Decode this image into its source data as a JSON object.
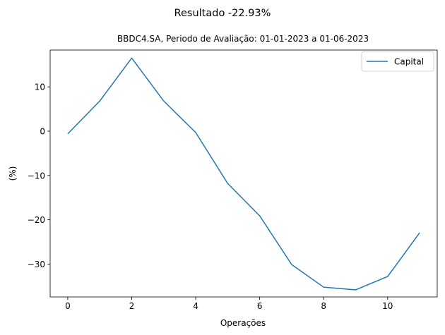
{
  "chart_data": {
    "type": "line",
    "suptitle": "Resultado -22.93%",
    "title": "BBDC4.SA, Periodo de Avaliação: 01-01-2023 a 01-06-2023",
    "xlabel": "Operações",
    "ylabel": "(%)",
    "x": [
      0,
      1,
      2,
      3,
      4,
      5,
      6,
      7,
      8,
      9,
      10,
      11
    ],
    "series": [
      {
        "name": "Capital",
        "color": "#1f77b4",
        "values": [
          -0.6,
          6.8,
          16.5,
          6.8,
          -0.3,
          -11.8,
          -19.1,
          -30.1,
          -35.2,
          -35.8,
          -32.8,
          -22.93
        ]
      }
    ],
    "xlim": [
      -0.55,
      11.55
    ],
    "ylim": [
      -37.4,
      18.3
    ],
    "xticks": [
      0,
      2,
      4,
      6,
      8,
      10
    ],
    "xtick_labels": [
      "0",
      "2",
      "4",
      "6",
      "8",
      "10"
    ],
    "yticks": [
      10,
      0,
      -10,
      -20,
      -30
    ],
    "ytick_labels": [
      "10",
      "0",
      "−10",
      "−20",
      "−30"
    ],
    "grid": false,
    "legend_position": "top-right"
  }
}
